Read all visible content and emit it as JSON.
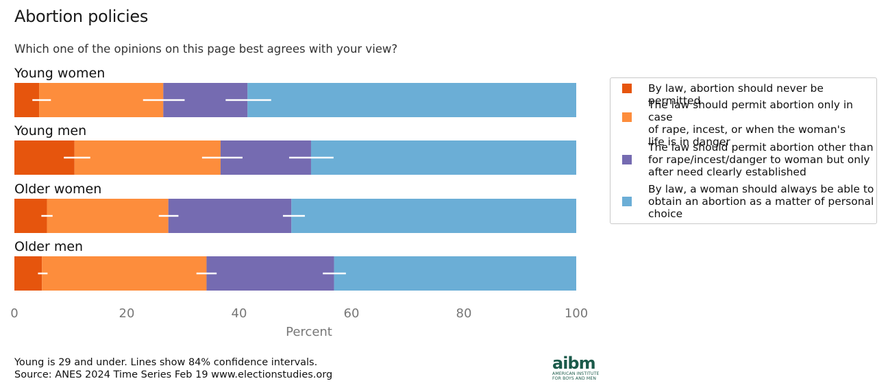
{
  "chart_data": {
    "type": "bar",
    "orientation": "horizontal",
    "stacked": true,
    "title": "Abortion policies",
    "subtitle": "Which one of the opinions on this page best agrees with your view?",
    "xlabel": "Percent",
    "ylabel": "",
    "xlim": [
      0,
      100
    ],
    "xticks": [
      "0",
      "20",
      "40",
      "60",
      "80",
      "100"
    ],
    "xtick_values": [
      0,
      20,
      40,
      60,
      80,
      100
    ],
    "grid": false,
    "legend_position": "right",
    "categories": [
      "Young women",
      "Young men",
      "Older women",
      "Older men"
    ],
    "series": [
      {
        "name": "By law, abortion should never be permitted",
        "label_lines": [
          "By law, abortion should never be permitted"
        ],
        "color": "#e6550d",
        "values": [
          4.4,
          10.7,
          5.8,
          4.9
        ],
        "ci": [
          [
            3.2,
            6.5
          ],
          [
            8.8,
            13.5
          ],
          [
            4.8,
            6.8
          ],
          [
            4.2,
            5.9
          ]
        ]
      },
      {
        "name": "The law should permit abortion only in case of rape, incest, or when the woman's life is in danger",
        "label_lines": [
          "The law should permit abortion only in case",
          "of rape, incest, or when the woman's",
          "life is in danger"
        ],
        "color": "#fd8d3c",
        "values": [
          22.1,
          26.0,
          21.6,
          29.3
        ],
        "ci": [
          [
            22.9,
            30.3
          ],
          [
            33.4,
            40.6
          ],
          [
            25.7,
            29.2
          ],
          [
            32.4,
            36.0
          ]
        ]
      },
      {
        "name": "The law should permit abortion other than for rape/incest/danger to woman but only after need clearly established",
        "label_lines": [
          "The law should permit abortion other than",
          "for rape/incest/danger to woman but only",
          "after need clearly established"
        ],
        "color": "#756bb1",
        "values": [
          15.0,
          16.1,
          21.9,
          22.7
        ],
        "ci": [
          [
            37.6,
            45.7
          ],
          [
            48.9,
            56.8
          ],
          [
            47.8,
            51.7
          ],
          [
            54.9,
            59.0
          ]
        ]
      },
      {
        "name": "By law, a woman should always be able to obtain an abortion as a matter of personal choice",
        "label_lines": [
          "By law, a woman should always be able to",
          "obtain an abortion as a matter of personal",
          "choice"
        ],
        "color": "#6baed6",
        "values": [
          58.5,
          47.2,
          50.7,
          43.1
        ],
        "ci": null
      }
    ],
    "ci_color": "#ffffff",
    "footnote_lines": [
      "Young is 29 and under. Lines show 84% confidence intervals.",
      "Source: ANES 2024 Time Series Feb 19 www.electionstudies.org"
    ]
  },
  "logo": {
    "mark": "aibm",
    "line1": "AMERICAN INSTITUTE",
    "line2": "FOR BOYS AND MEN",
    "color": "#1b5a4a"
  }
}
